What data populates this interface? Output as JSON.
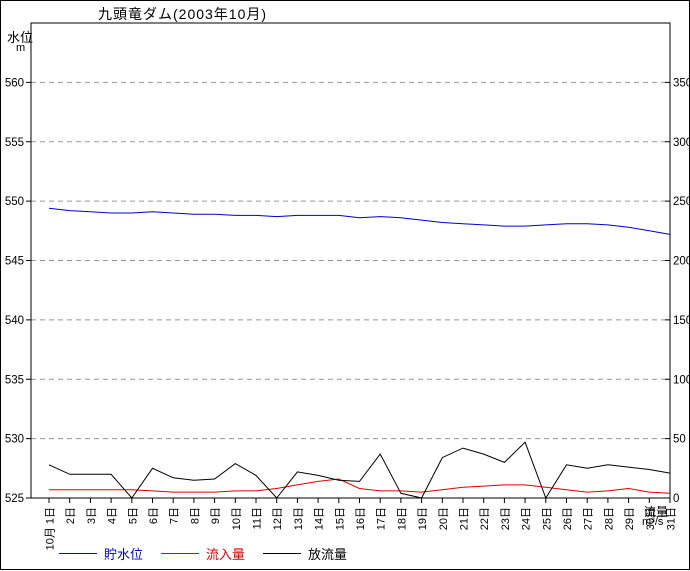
{
  "title": "九頭竜ダム(2003年10月)",
  "left_axis_label": "水位",
  "left_axis_unit": "m",
  "right_axis_label": "流量",
  "right_axis_unit": "m³/s",
  "chart_data": {
    "type": "line",
    "title": "九頭竜ダム(2003年10月)",
    "x_tick_labels": [
      "10月 1日",
      "2日",
      "3日",
      "4日",
      "5日",
      "6日",
      "7日",
      "8日",
      "9日",
      "10日",
      "11日",
      "12日",
      "13日",
      "14日",
      "15日",
      "16日",
      "17日",
      "18日",
      "19日",
      "20日",
      "21日",
      "22日",
      "23日",
      "24日",
      "25日",
      "26日",
      "27日",
      "28日",
      "29日",
      "30日",
      "31日"
    ],
    "left_axis": {
      "label": "水位",
      "unit": "m",
      "min": 525,
      "max": 565,
      "tick_step": 5,
      "ticks": [
        525,
        530,
        535,
        540,
        545,
        550,
        555,
        560
      ]
    },
    "right_axis": {
      "label": "流量",
      "unit": "m³/s",
      "min": 0,
      "max": 400,
      "tick_step": 50,
      "ticks": [
        0,
        50,
        100,
        150,
        200,
        250,
        300,
        350
      ]
    },
    "grid": {
      "horizontal": true,
      "style": "dashed",
      "color": "#999999"
    },
    "legend_position": "bottom",
    "series": [
      {
        "name": "貯水位",
        "axis": "left",
        "color": "#0000cc",
        "values": [
          549.4,
          549.2,
          549.1,
          549.0,
          549.0,
          549.1,
          549.0,
          548.9,
          548.9,
          548.8,
          548.8,
          548.7,
          548.8,
          548.8,
          548.8,
          548.6,
          548.7,
          548.6,
          548.4,
          548.2,
          548.1,
          548.0,
          547.9,
          547.9,
          548.0,
          548.1,
          548.1,
          548.0,
          547.8,
          547.5,
          547.2
        ]
      },
      {
        "name": "流入量",
        "axis": "right",
        "color": "#dd0000",
        "values": [
          7,
          7,
          7,
          7,
          7,
          6,
          5,
          5,
          5,
          6,
          6,
          8,
          11,
          14,
          16,
          8,
          6,
          6,
          5,
          7,
          9,
          10,
          11,
          11,
          9,
          7,
          5,
          6,
          8,
          5,
          4
        ]
      },
      {
        "name": "放流量",
        "axis": "right",
        "color": "#000000",
        "values": [
          28,
          20,
          20,
          20,
          0,
          25,
          17,
          15,
          16,
          29,
          19,
          0,
          22,
          19,
          15,
          14,
          37,
          4,
          0,
          34,
          42,
          37,
          30,
          47,
          0,
          28,
          25,
          28,
          26,
          24,
          21
        ]
      }
    ]
  }
}
